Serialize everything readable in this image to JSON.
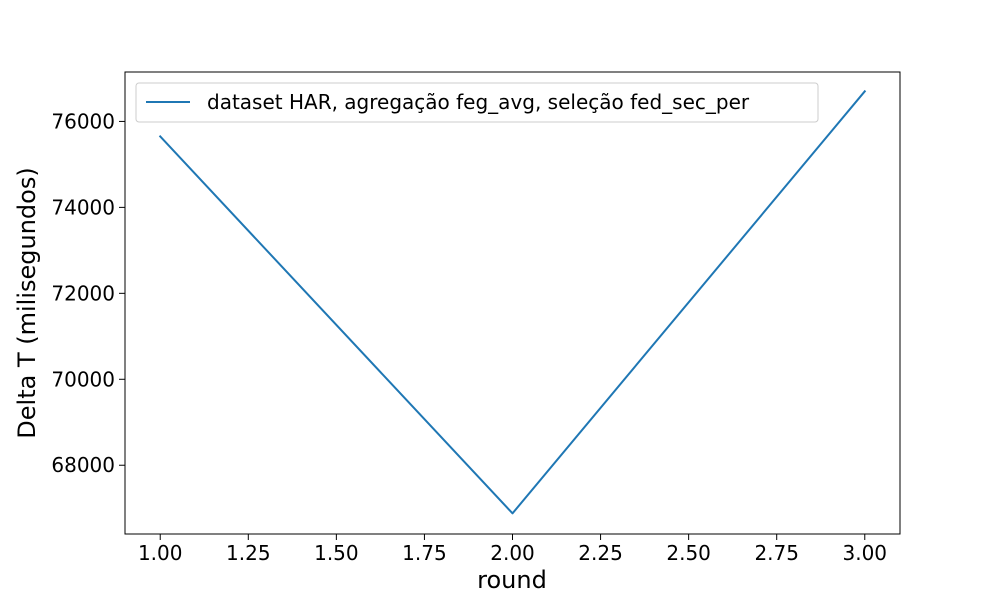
{
  "chart_data": {
    "type": "line",
    "title": "",
    "xlabel": "round",
    "ylabel": "Delta T (milisegundos)",
    "xlim": [
      0.9,
      3.1
    ],
    "ylim": [
      66400,
      77150
    ],
    "xticks": [
      1.0,
      1.25,
      1.5,
      1.75,
      2.0,
      2.25,
      2.5,
      2.75,
      3.0
    ],
    "xtick_labels": [
      "1.00",
      "1.25",
      "1.50",
      "1.75",
      "2.00",
      "2.25",
      "2.50",
      "2.75",
      "3.00"
    ],
    "yticks": [
      68000,
      70000,
      72000,
      74000,
      76000
    ],
    "ytick_labels": [
      "68000",
      "70000",
      "72000",
      "74000",
      "76000"
    ],
    "grid": false,
    "legend_position": "upper-left",
    "series": [
      {
        "name": "dataset HAR, agregação feg_avg, seleção fed_sec_per",
        "color": "#1f77b4",
        "x": [
          1,
          2,
          3
        ],
        "y": [
          75650,
          66880,
          76700
        ]
      }
    ]
  }
}
